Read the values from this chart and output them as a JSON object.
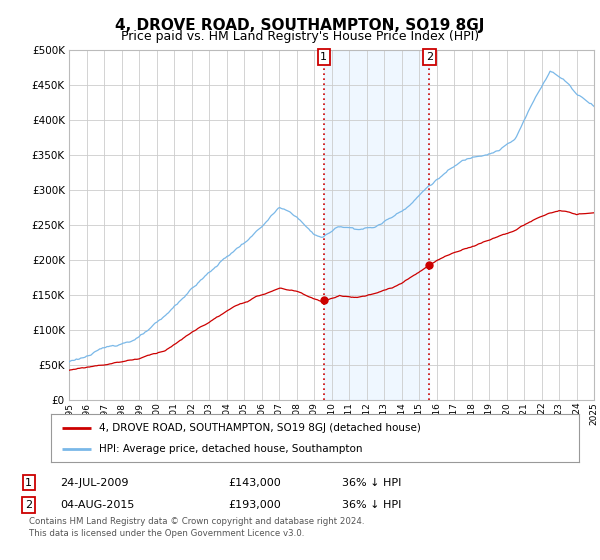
{
  "title": "4, DROVE ROAD, SOUTHAMPTON, SO19 8GJ",
  "subtitle": "Price paid vs. HM Land Registry's House Price Index (HPI)",
  "ylim": [
    0,
    500000
  ],
  "yticks": [
    0,
    50000,
    100000,
    150000,
    200000,
    250000,
    300000,
    350000,
    400000,
    450000,
    500000
  ],
  "hpi_color": "#7ab8e8",
  "price_color": "#cc0000",
  "marker1_date": 2009.56,
  "marker1_price": 143000,
  "marker1_label": "1",
  "marker2_date": 2015.59,
  "marker2_price": 193000,
  "marker2_label": "2",
  "vline_color": "#cc0000",
  "shade_color": "#ddeeff",
  "shade_alpha": 0.45,
  "legend_line1": "4, DROVE ROAD, SOUTHAMPTON, SO19 8GJ (detached house)",
  "legend_line2": "HPI: Average price, detached house, Southampton",
  "table_row1": [
    "1",
    "24-JUL-2009",
    "£143,000",
    "36% ↓ HPI"
  ],
  "table_row2": [
    "2",
    "04-AUG-2015",
    "£193,000",
    "36% ↓ HPI"
  ],
  "footnote": "Contains HM Land Registry data © Crown copyright and database right 2024.\nThis data is licensed under the Open Government Licence v3.0.",
  "bg_color": "#ffffff",
  "grid_color": "#cccccc",
  "title_fontsize": 11,
  "subtitle_fontsize": 9,
  "tick_fontsize": 7.5
}
